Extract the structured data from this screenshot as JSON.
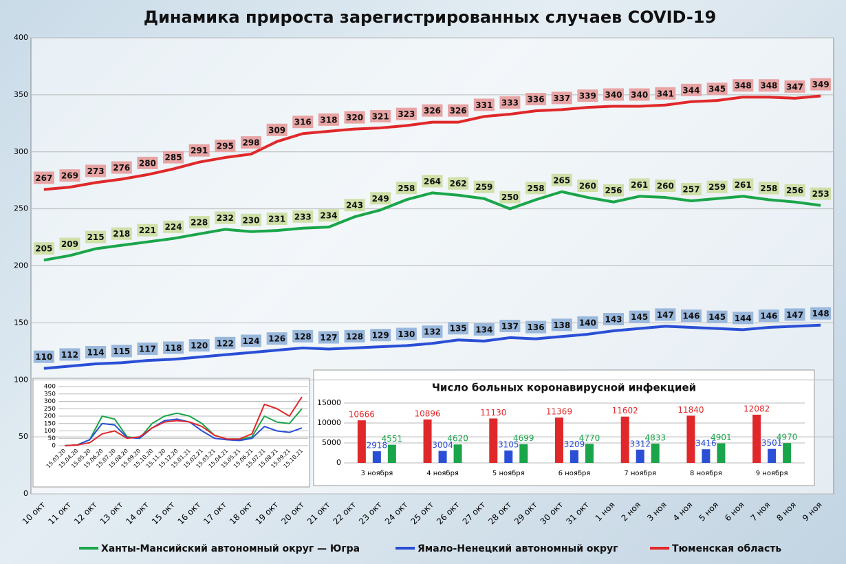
{
  "chart_data": [
    {
      "type": "line",
      "title": "Динамика прироста зарегистрированных случаев COVID-19",
      "categories": [
        "10 окт",
        "11 окт",
        "12 окт",
        "13 окт",
        "14 окт",
        "15 окт",
        "16 окт",
        "17 окт",
        "18 окт",
        "19 окт",
        "20 окт",
        "21 окт",
        "22 окт",
        "23 окт",
        "24 окт",
        "25 окт",
        "26 окт",
        "27 окт",
        "28 окт",
        "29 окт",
        "30 окт",
        "31 окт",
        "1 ноя",
        "2 ноя",
        "3 ноя",
        "4 ноя",
        "5 ноя",
        "6 ноя",
        "7 ноя",
        "8 ноя",
        "9 ноя"
      ],
      "series": [
        {
          "name": "Ханты-Мансийский автономный округ — Югра",
          "color": "#1aa54a",
          "label_color": "#cfe0a8",
          "values": [
            205,
            209,
            215,
            218,
            221,
            224,
            228,
            232,
            230,
            231,
            233,
            234,
            243,
            249,
            258,
            264,
            262,
            259,
            250,
            258,
            265,
            260,
            256,
            261,
            260,
            257,
            259,
            261,
            258,
            256,
            253
          ]
        },
        {
          "name": "Ямало-Ненецкий автономный округ",
          "color": "#2a4fd6",
          "label_color": "#9ab8dc",
          "values": [
            110,
            112,
            114,
            115,
            117,
            118,
            120,
            122,
            124,
            126,
            128,
            127,
            128,
            129,
            130,
            132,
            135,
            134,
            137,
            136,
            138,
            140,
            143,
            145,
            147,
            146,
            145,
            144,
            146,
            147,
            148
          ]
        },
        {
          "name": "Тюменская область",
          "color": "#e0282a",
          "label_color": "#e8a4a4",
          "values": [
            267,
            269,
            273,
            276,
            280,
            285,
            291,
            295,
            298,
            309,
            316,
            318,
            320,
            321,
            323,
            326,
            326,
            331,
            333,
            336,
            337,
            339,
            340,
            340,
            341,
            344,
            345,
            348,
            348,
            347,
            349
          ]
        }
      ],
      "ylim": [
        0,
        400
      ],
      "yticks": [
        0,
        50,
        100,
        150,
        200,
        250,
        300,
        350,
        400
      ],
      "grid": true
    },
    {
      "type": "line",
      "categories": [
        "15.03.20",
        "15.04.20",
        "15.05.20",
        "15.06.20",
        "15.07.20",
        "15.08.20",
        "15.09.20",
        "15.10.20",
        "15.11.20",
        "15.12.20",
        "15.01.21",
        "15.02.21",
        "15.03.21",
        "15.04.21",
        "15.05.21",
        "15.06.21",
        "15.07.21",
        "15.08.21",
        "15.09.21",
        "15.10.21"
      ],
      "series": [
        {
          "color": "#1aa54a",
          "values": [
            0,
            5,
            40,
            200,
            180,
            60,
            50,
            150,
            200,
            220,
            200,
            150,
            70,
            45,
            40,
            60,
            200,
            160,
            150,
            250
          ]
        },
        {
          "color": "#2a4fd6",
          "values": [
            0,
            5,
            40,
            150,
            140,
            55,
            50,
            120,
            170,
            180,
            160,
            100,
            50,
            40,
            35,
            50,
            130,
            100,
            90,
            120
          ]
        },
        {
          "color": "#e0282a",
          "values": [
            0,
            5,
            20,
            80,
            100,
            50,
            60,
            120,
            160,
            170,
            160,
            130,
            70,
            45,
            45,
            80,
            280,
            250,
            200,
            330
          ]
        }
      ],
      "ylim": [
        0,
        400
      ],
      "yticks": [
        0,
        50,
        100,
        150,
        200,
        250,
        300,
        350,
        400
      ],
      "grid": true
    },
    {
      "type": "bar",
      "title": "Число больных коронавирусной инфекцией",
      "categories": [
        "3 ноября",
        "4 ноября",
        "5 ноября",
        "6 ноября",
        "7 ноября",
        "8 ноября",
        "9 ноября"
      ],
      "series": [
        {
          "color": "#e0282a",
          "values": [
            10666,
            10896,
            11130,
            11369,
            11602,
            11840,
            12082
          ]
        },
        {
          "color": "#2a4fd6",
          "values": [
            2918,
            3004,
            3105,
            3209,
            3312,
            3416,
            3501
          ]
        },
        {
          "color": "#1aa54a",
          "values": [
            4551,
            4620,
            4699,
            4770,
            4833,
            4901,
            4970
          ]
        }
      ],
      "ylim": [
        0,
        15000
      ],
      "yticks": [
        0,
        5000,
        10000,
        15000
      ],
      "grid": true
    }
  ]
}
